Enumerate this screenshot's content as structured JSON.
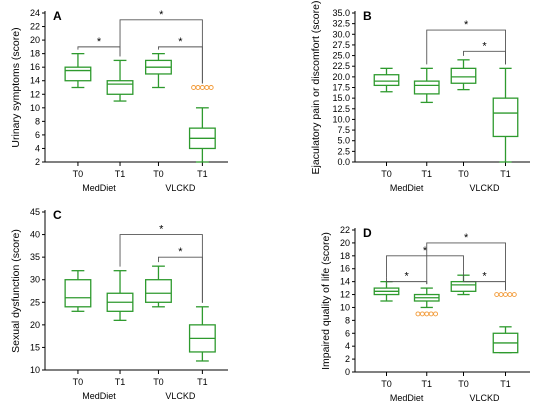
{
  "style": {
    "box_color": "#2e9a2e",
    "outlier_color": "#f29a38",
    "bracket_color": "#555555",
    "axis_color": "#000000"
  },
  "chart_data": [
    {
      "type": "box",
      "panel": "A",
      "ylabel": "Urinary symptoms (score)",
      "ylim": [
        2,
        24
      ],
      "yticks": [
        2,
        4,
        6,
        8,
        10,
        12,
        14,
        16,
        18,
        20,
        22,
        24
      ],
      "categories": [
        "T0",
        "T1",
        "T0",
        "T1"
      ],
      "groups": [
        {
          "label": "MedDiet",
          "categories": [
            0,
            1
          ]
        },
        {
          "label": "VLCKD",
          "categories": [
            2,
            3
          ]
        }
      ],
      "boxes": [
        {
          "min": 13,
          "q1": 14,
          "median": 15.5,
          "q3": 16,
          "max": 18,
          "outliers": []
        },
        {
          "min": 11,
          "q1": 12,
          "median": 13.5,
          "q3": 14,
          "max": 17,
          "outliers": []
        },
        {
          "min": 13,
          "q1": 15,
          "median": 16,
          "q3": 17,
          "max": 18,
          "outliers": []
        },
        {
          "min": 2,
          "q1": 4,
          "median": 5.5,
          "q3": 7,
          "max": 10,
          "outliers": [
            13,
            13,
            13,
            13,
            13
          ]
        }
      ],
      "brackets": [
        {
          "from": 0,
          "to": 1,
          "y": 19,
          "label": "*"
        },
        {
          "from": 2,
          "to": 3,
          "y": 19,
          "label": "*"
        },
        {
          "from": 1,
          "to": 3,
          "y": 23,
          "label": "*"
        }
      ]
    },
    {
      "type": "box",
      "panel": "B",
      "ylabel": "Ejaculatory pain or discomfort (score)",
      "ylim": [
        0,
        35
      ],
      "yticks": [
        0,
        2.5,
        5,
        7.5,
        10,
        12.5,
        15,
        17.5,
        20,
        22.5,
        25,
        27.5,
        30,
        32.5,
        35
      ],
      "yticklabels": [
        "0.0",
        "2.5",
        "5.0",
        "7.5",
        "10.0",
        "12.5",
        "15.0",
        "17.5",
        "20.0",
        "22.5",
        "25.0",
        "27.5",
        "30.0",
        "32.5",
        "35.0"
      ],
      "categories": [
        "T0",
        "T1",
        "T0",
        "T1"
      ],
      "groups": [
        {
          "label": "MedDiet",
          "categories": [
            0,
            1
          ]
        },
        {
          "label": "VLCKD",
          "categories": [
            2,
            3
          ]
        }
      ],
      "boxes": [
        {
          "min": 16.5,
          "q1": 18,
          "median": 19,
          "q3": 20.5,
          "max": 22,
          "outliers": []
        },
        {
          "min": 14,
          "q1": 16,
          "median": 18,
          "q3": 19,
          "max": 22,
          "outliers": []
        },
        {
          "min": 17,
          "q1": 18.5,
          "median": 20,
          "q3": 22,
          "max": 24,
          "outliers": []
        },
        {
          "min": 0,
          "q1": 6,
          "median": 11.5,
          "q3": 15,
          "max": 22,
          "outliers": []
        }
      ],
      "brackets": [
        {
          "from": 2,
          "to": 3,
          "y": 26,
          "label": "*"
        },
        {
          "from": 1,
          "to": 3,
          "y": 31,
          "label": "*"
        }
      ]
    },
    {
      "type": "box",
      "panel": "C",
      "ylabel": "Sexual dysfunction (score)",
      "ylim": [
        10,
        45
      ],
      "yticks": [
        10,
        15,
        20,
        25,
        30,
        35,
        40,
        45
      ],
      "categories": [
        "T0",
        "T1",
        "T0",
        "T1"
      ],
      "groups": [
        {
          "label": "MedDiet",
          "categories": [
            0,
            1
          ]
        },
        {
          "label": "VLCKD",
          "categories": [
            2,
            3
          ]
        }
      ],
      "boxes": [
        {
          "min": 23,
          "q1": 24,
          "median": 26,
          "q3": 30,
          "max": 32,
          "outliers": []
        },
        {
          "min": 21,
          "q1": 23,
          "median": 25,
          "q3": 27,
          "max": 32,
          "outliers": []
        },
        {
          "min": 24,
          "q1": 25,
          "median": 27,
          "q3": 30,
          "max": 33,
          "outliers": []
        },
        {
          "min": 12,
          "q1": 14,
          "median": 17,
          "q3": 20,
          "max": 24,
          "outliers": []
        }
      ],
      "brackets": [
        {
          "from": 2,
          "to": 3,
          "y": 35,
          "label": "*"
        },
        {
          "from": 1,
          "to": 3,
          "y": 40,
          "label": "*"
        }
      ]
    },
    {
      "type": "box",
      "panel": "D",
      "ylabel": "Impaired quality of life (score)",
      "ylim": [
        0,
        22
      ],
      "yticks": [
        0,
        2,
        4,
        6,
        8,
        10,
        12,
        14,
        16,
        18,
        20,
        22
      ],
      "categories": [
        "T0",
        "T1",
        "T0",
        "T1"
      ],
      "groups": [
        {
          "label": "MedDiet",
          "categories": [
            0,
            1
          ]
        },
        {
          "label": "VLCKD",
          "categories": [
            2,
            3
          ]
        }
      ],
      "boxes": [
        {
          "min": 11,
          "q1": 12,
          "median": 12.5,
          "q3": 13,
          "max": 14,
          "outliers": []
        },
        {
          "min": 10,
          "q1": 11,
          "median": 11.5,
          "q3": 12,
          "max": 13,
          "outliers": [
            9,
            9,
            9,
            9,
            9
          ]
        },
        {
          "min": 12,
          "q1": 12.5,
          "median": 13.5,
          "q3": 14,
          "max": 15,
          "outliers": []
        },
        {
          "min": 3,
          "q1": 3,
          "median": 4.5,
          "q3": 6,
          "max": 7,
          "outliers": [
            12,
            12,
            12,
            12,
            12
          ]
        }
      ],
      "brackets": [
        {
          "from": 0,
          "to": 1,
          "y": 14,
          "label": "*"
        },
        {
          "from": 2,
          "to": 3,
          "y": 14,
          "label": "*"
        },
        {
          "from": 0,
          "to": 2,
          "y": 18,
          "label": "*"
        },
        {
          "from": 1,
          "to": 3,
          "y": 20,
          "label": "*"
        }
      ]
    }
  ]
}
